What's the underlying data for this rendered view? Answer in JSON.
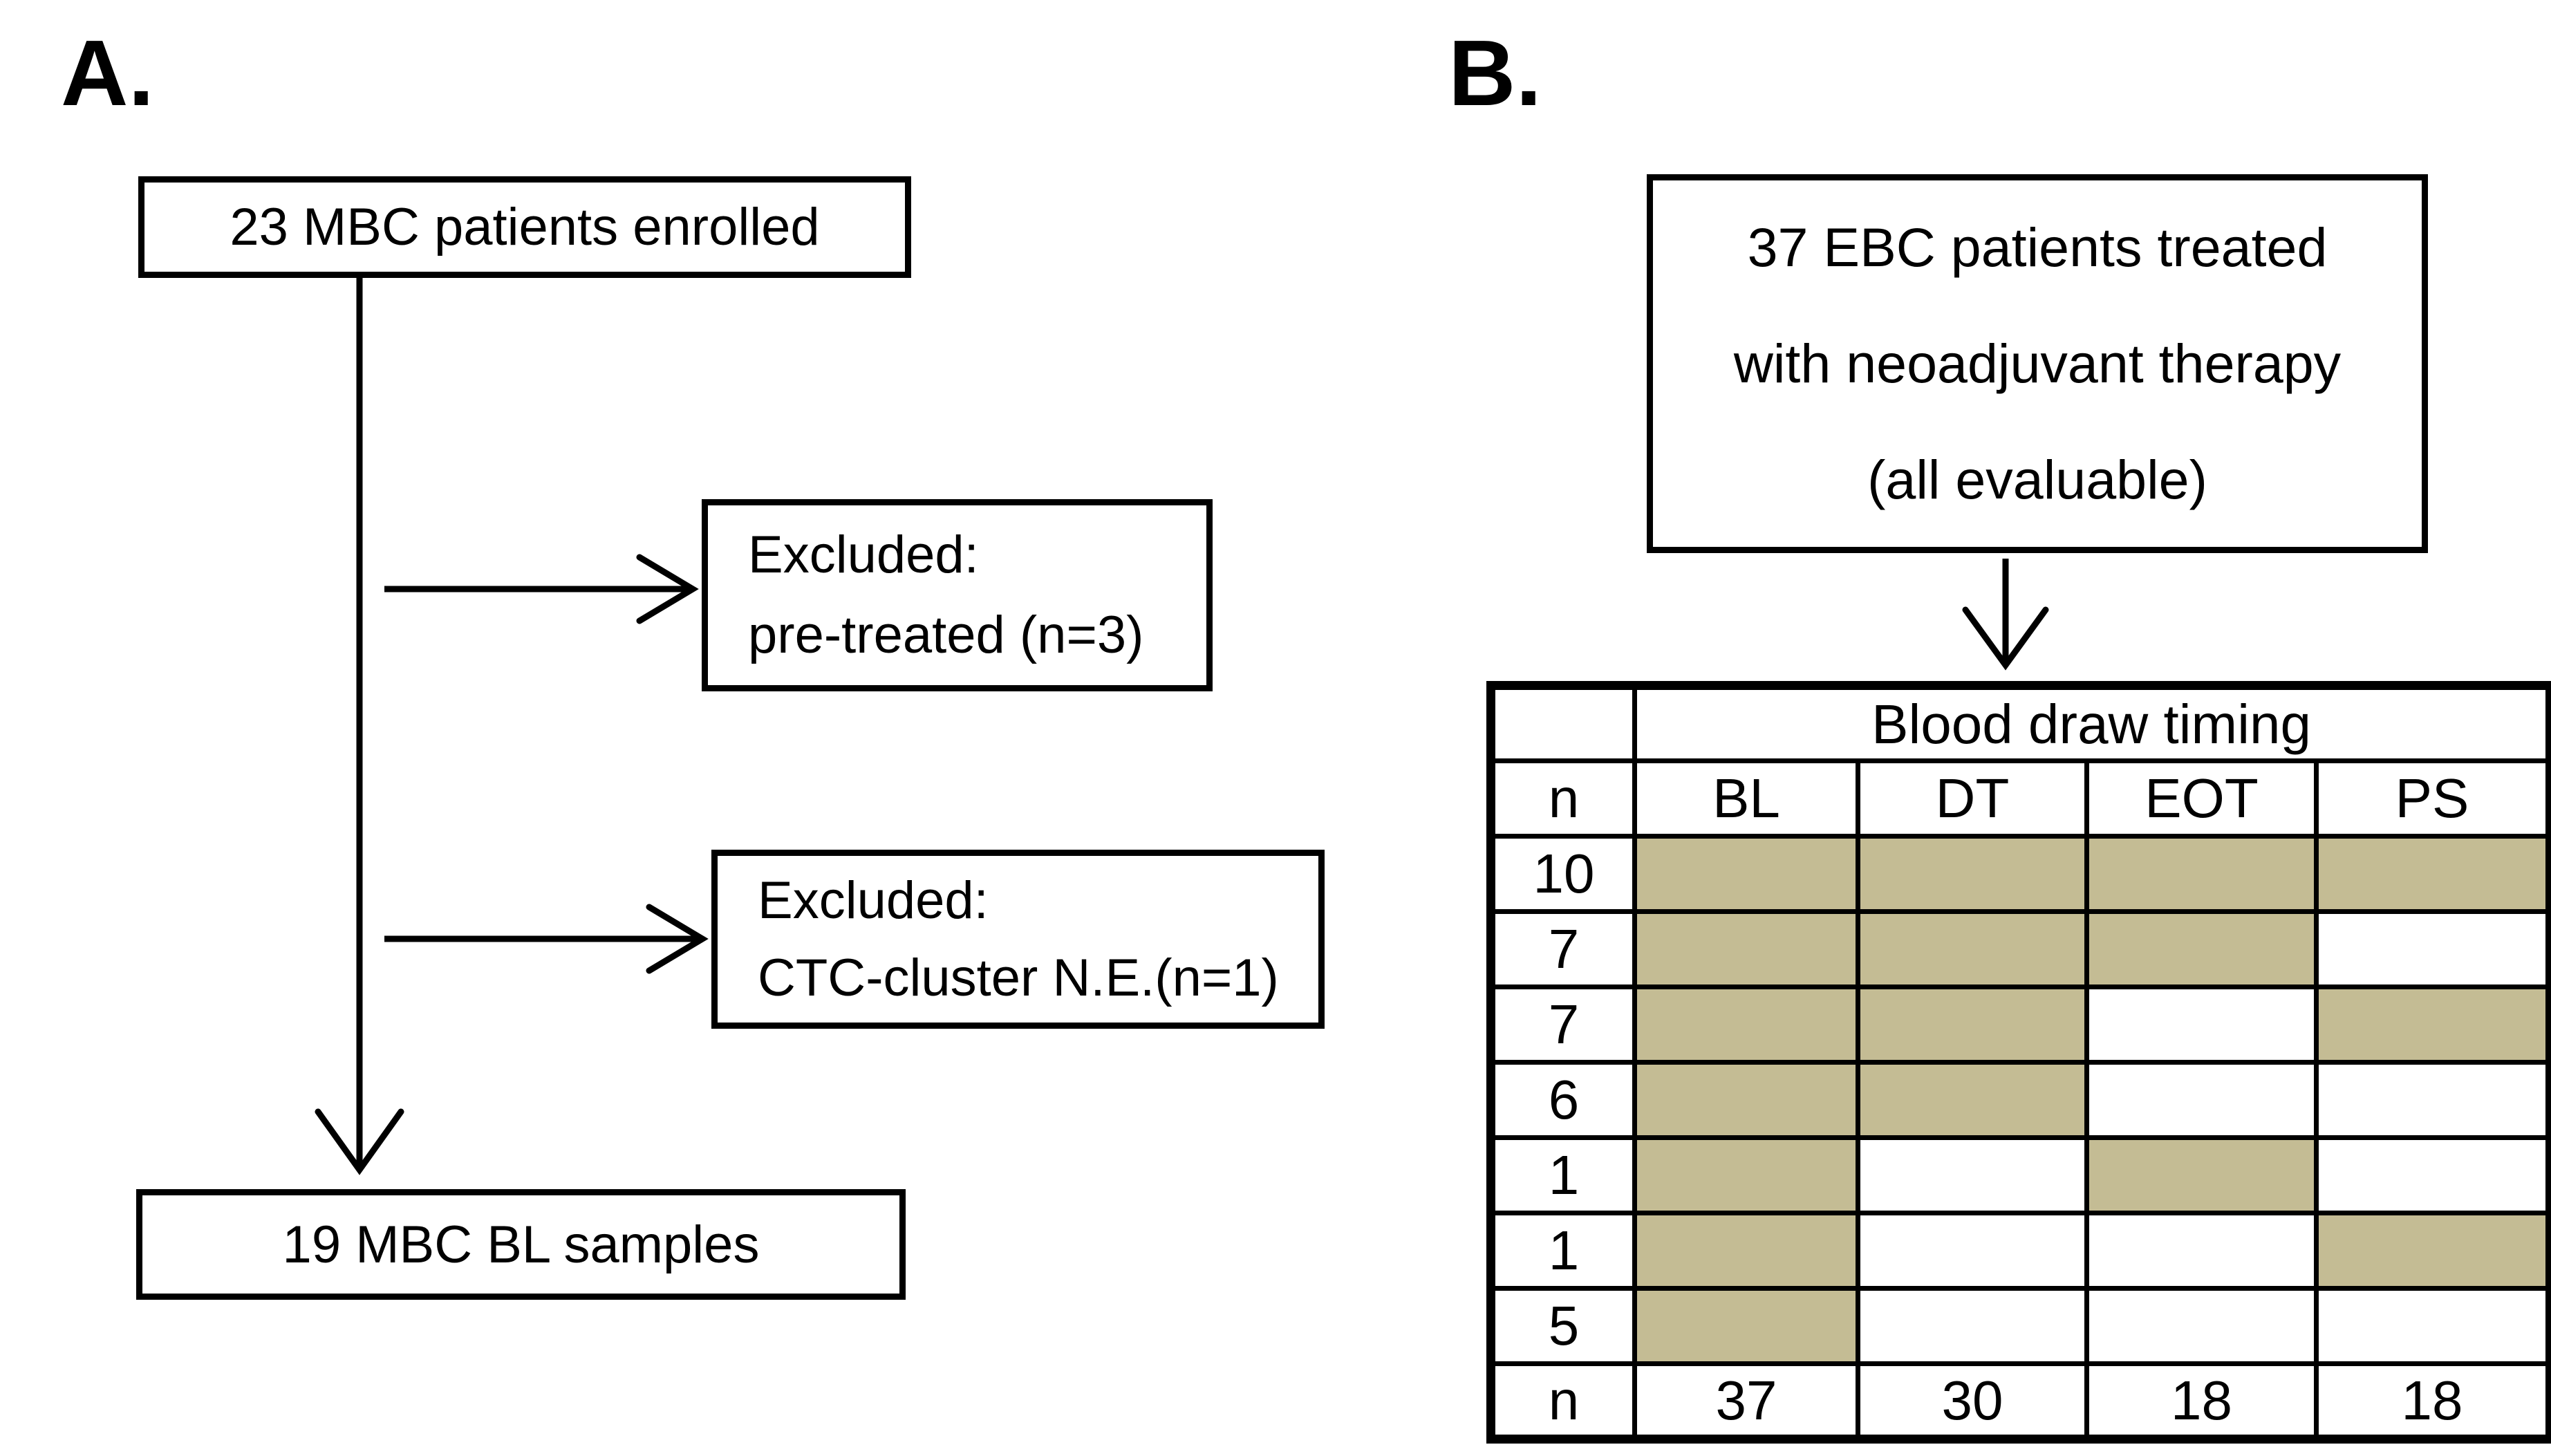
{
  "panel_a": {
    "label": "A.",
    "top_box": "23 MBC patients enrolled",
    "excluded_box_1": {
      "line1": "Excluded:",
      "line2": "pre-treated (n=3)"
    },
    "excluded_box_2": {
      "line1": "Excluded:",
      "line2": "CTC-cluster N.E.(n=1)"
    },
    "bottom_box": "19 MBC BL samples"
  },
  "panel_b": {
    "label": "B.",
    "top_box_lines": {
      "0": "37 EBC patients treated",
      "1": "with neoadjuvant therapy",
      "2": "(all evaluable)"
    },
    "table": {
      "spanning_header": "Blood draw timing",
      "columns": {
        "0": "n",
        "1": "BL",
        "2": "DT",
        "3": "EOT",
        "4": "PS"
      },
      "rows": [
        {
          "n": "10",
          "shaded": [
            true,
            true,
            true,
            true
          ]
        },
        {
          "n": "7",
          "shaded": [
            true,
            true,
            true,
            false
          ]
        },
        {
          "n": "7",
          "shaded": [
            true,
            true,
            false,
            true
          ]
        },
        {
          "n": "6",
          "shaded": [
            true,
            true,
            false,
            false
          ]
        },
        {
          "n": "1",
          "shaded": [
            true,
            false,
            true,
            false
          ]
        },
        {
          "n": "1",
          "shaded": [
            true,
            false,
            false,
            true
          ]
        },
        {
          "n": "5",
          "shaded": [
            true,
            false,
            false,
            false
          ]
        }
      ],
      "totals_row": {
        "label": "n",
        "values": [
          "37",
          "30",
          "18",
          "18"
        ]
      }
    }
  },
  "colors": {
    "shade": "#c4bc94",
    "line": "#000000",
    "background": "#ffffff"
  }
}
